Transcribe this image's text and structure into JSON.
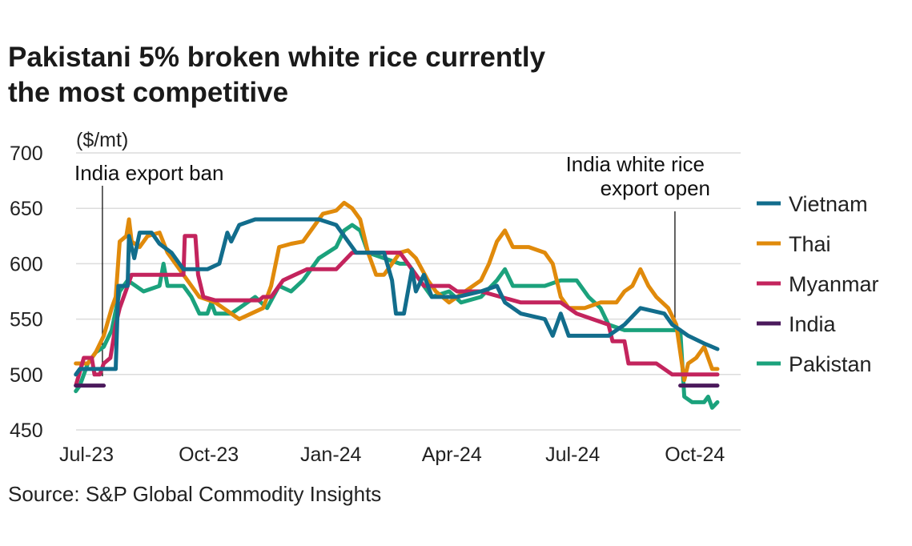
{
  "chart_data": {
    "type": "line",
    "title": "Pakistani 5% broken white rice currently the most competitive",
    "ylabel": "($/mt)",
    "source": "Source: S&P Global Commodity Insights",
    "ylim": [
      450,
      700
    ],
    "yticks": [
      450,
      500,
      550,
      600,
      650,
      700
    ],
    "xticks": [
      {
        "date": "2023-07-01",
        "label": "Jul-23"
      },
      {
        "date": "2023-10-01",
        "label": "Oct-23"
      },
      {
        "date": "2024-01-01",
        "label": "Jan-24"
      },
      {
        "date": "2024-04-01",
        "label": "Apr-24"
      },
      {
        "date": "2024-07-01",
        "label": "Jul-24"
      },
      {
        "date": "2024-10-01",
        "label": "Oct-24"
      }
    ],
    "grid": true,
    "legend_placement": "right",
    "annotations": [
      {
        "date": "2023-07-13",
        "lines": [
          "India export ban"
        ]
      },
      {
        "date": "2024-09-16",
        "lines": [
          "India white rice",
          "export open"
        ]
      }
    ],
    "series": [
      {
        "name": "Vietnam",
        "color": "#126d8c",
        "points": [
          [
            "2023-06-23",
            500
          ],
          [
            "2023-06-26",
            505
          ],
          [
            "2023-07-20",
            505
          ],
          [
            "2023-07-23",
            505
          ],
          [
            "2023-07-25",
            580
          ],
          [
            "2023-08-01",
            580
          ],
          [
            "2023-08-02",
            625
          ],
          [
            "2023-08-06",
            605
          ],
          [
            "2023-08-10",
            628
          ],
          [
            "2023-08-19",
            628
          ],
          [
            "2023-08-25",
            618
          ],
          [
            "2023-09-03",
            610
          ],
          [
            "2023-09-09",
            600
          ],
          [
            "2023-09-12",
            595
          ],
          [
            "2023-09-30",
            595
          ],
          [
            "2023-10-09",
            600
          ],
          [
            "2023-10-15",
            628
          ],
          [
            "2023-10-18",
            620
          ],
          [
            "2023-10-24",
            635
          ],
          [
            "2023-11-05",
            640
          ],
          [
            "2023-12-23",
            640
          ],
          [
            "2024-01-05",
            635
          ],
          [
            "2024-01-14",
            620
          ],
          [
            "2024-01-20",
            610
          ],
          [
            "2024-02-10",
            610
          ],
          [
            "2024-02-16",
            585
          ],
          [
            "2024-02-19",
            555
          ],
          [
            "2024-02-25",
            555
          ],
          [
            "2024-03-02",
            595
          ],
          [
            "2024-03-05",
            575
          ],
          [
            "2024-03-11",
            590
          ],
          [
            "2024-03-17",
            570
          ],
          [
            "2024-04-05",
            570
          ],
          [
            "2024-04-23",
            575
          ],
          [
            "2024-05-05",
            580
          ],
          [
            "2024-05-11",
            565
          ],
          [
            "2024-05-23",
            555
          ],
          [
            "2024-06-10",
            550
          ],
          [
            "2024-06-16",
            535
          ],
          [
            "2024-06-22",
            555
          ],
          [
            "2024-06-28",
            535
          ],
          [
            "2024-07-28",
            535
          ],
          [
            "2024-08-03",
            540
          ],
          [
            "2024-08-09",
            545
          ],
          [
            "2024-08-21",
            560
          ],
          [
            "2024-09-08",
            555
          ],
          [
            "2024-09-14",
            545
          ],
          [
            "2024-09-20",
            540
          ],
          [
            "2024-09-26",
            535
          ],
          [
            "2024-10-08",
            528
          ],
          [
            "2024-10-18",
            523
          ]
        ]
      },
      {
        "name": "Thai",
        "color": "#e08a0b",
        "points": [
          [
            "2023-06-23",
            510
          ],
          [
            "2023-07-02",
            510
          ],
          [
            "2023-07-08",
            520
          ],
          [
            "2023-07-14",
            535
          ],
          [
            "2023-07-20",
            560
          ],
          [
            "2023-07-23",
            570
          ],
          [
            "2023-07-26",
            620
          ],
          [
            "2023-07-31",
            625
          ],
          [
            "2023-08-02",
            640
          ],
          [
            "2023-08-04",
            620
          ],
          [
            "2023-08-10",
            615
          ],
          [
            "2023-08-16",
            625
          ],
          [
            "2023-08-25",
            628
          ],
          [
            "2023-08-31",
            610
          ],
          [
            "2023-09-12",
            590
          ],
          [
            "2023-09-24",
            570
          ],
          [
            "2023-10-06",
            565
          ],
          [
            "2023-10-18",
            555
          ],
          [
            "2023-10-24",
            550
          ],
          [
            "2023-11-02",
            555
          ],
          [
            "2023-11-11",
            560
          ],
          [
            "2023-11-17",
            580
          ],
          [
            "2023-11-23",
            615
          ],
          [
            "2023-12-02",
            618
          ],
          [
            "2023-12-11",
            620
          ],
          [
            "2023-12-20",
            635
          ],
          [
            "2023-12-26",
            645
          ],
          [
            "2024-01-05",
            648
          ],
          [
            "2024-01-11",
            655
          ],
          [
            "2024-01-17",
            650
          ],
          [
            "2024-01-23",
            640
          ],
          [
            "2024-01-29",
            610
          ],
          [
            "2024-02-04",
            590
          ],
          [
            "2024-02-10",
            590
          ],
          [
            "2024-02-16",
            600
          ],
          [
            "2024-02-22",
            610
          ],
          [
            "2024-02-28",
            612
          ],
          [
            "2024-03-05",
            605
          ],
          [
            "2024-03-14",
            585
          ],
          [
            "2024-03-20",
            575
          ],
          [
            "2024-03-30",
            565
          ],
          [
            "2024-04-11",
            575
          ],
          [
            "2024-04-23",
            585
          ],
          [
            "2024-04-29",
            600
          ],
          [
            "2024-05-05",
            620
          ],
          [
            "2024-05-11",
            630
          ],
          [
            "2024-05-17",
            615
          ],
          [
            "2024-05-29",
            615
          ],
          [
            "2024-06-10",
            610
          ],
          [
            "2024-06-16",
            600
          ],
          [
            "2024-06-22",
            570
          ],
          [
            "2024-06-28",
            560
          ],
          [
            "2024-07-10",
            560
          ],
          [
            "2024-07-22",
            565
          ],
          [
            "2024-08-03",
            565
          ],
          [
            "2024-08-09",
            575
          ],
          [
            "2024-08-15",
            580
          ],
          [
            "2024-08-21",
            595
          ],
          [
            "2024-08-27",
            580
          ],
          [
            "2024-09-02",
            570
          ],
          [
            "2024-09-11",
            560
          ],
          [
            "2024-09-17",
            545
          ],
          [
            "2024-09-23",
            495
          ],
          [
            "2024-09-26",
            510
          ],
          [
            "2024-10-02",
            515
          ],
          [
            "2024-10-08",
            525
          ],
          [
            "2024-10-14",
            505
          ],
          [
            "2024-10-18",
            505
          ]
        ]
      },
      {
        "name": "Myanmar",
        "color": "#c3245d",
        "points": [
          [
            "2023-06-23",
            490
          ],
          [
            "2023-06-29",
            515
          ],
          [
            "2023-07-05",
            515
          ],
          [
            "2023-07-07",
            500
          ],
          [
            "2023-07-11",
            500
          ],
          [
            "2023-07-14",
            510
          ],
          [
            "2023-07-19",
            515
          ],
          [
            "2023-07-23",
            545
          ],
          [
            "2023-07-26",
            560
          ],
          [
            "2023-07-29",
            570
          ],
          [
            "2023-08-04",
            590
          ],
          [
            "2023-09-12",
            590
          ],
          [
            "2023-09-13",
            625
          ],
          [
            "2023-09-21",
            625
          ],
          [
            "2023-09-23",
            590
          ],
          [
            "2023-09-27",
            570
          ],
          [
            "2023-10-06",
            567
          ],
          [
            "2023-11-08",
            567
          ],
          [
            "2023-11-11",
            570
          ],
          [
            "2023-11-17",
            570
          ],
          [
            "2023-11-20",
            575
          ],
          [
            "2023-11-26",
            585
          ],
          [
            "2023-12-05",
            590
          ],
          [
            "2023-12-14",
            595
          ],
          [
            "2024-01-05",
            595
          ],
          [
            "2024-01-17",
            610
          ],
          [
            "2024-02-22",
            610
          ],
          [
            "2024-03-11",
            580
          ],
          [
            "2024-03-30",
            580
          ],
          [
            "2024-04-05",
            575
          ],
          [
            "2024-04-23",
            575
          ],
          [
            "2024-05-23",
            565
          ],
          [
            "2024-06-22",
            565
          ],
          [
            "2024-07-04",
            555
          ],
          [
            "2024-07-16",
            550
          ],
          [
            "2024-07-28",
            545
          ],
          [
            "2024-07-31",
            530
          ],
          [
            "2024-08-09",
            530
          ],
          [
            "2024-08-12",
            510
          ],
          [
            "2024-09-02",
            510
          ],
          [
            "2024-09-14",
            500
          ],
          [
            "2024-10-18",
            500
          ]
        ]
      },
      {
        "name": "India",
        "color": "#4b1a5c",
        "points": [
          [
            "2023-06-23",
            490
          ],
          [
            "2023-07-11",
            490
          ],
          [
            "2023-07-14",
            490
          ],
          null,
          [
            "2024-09-20",
            490
          ],
          [
            "2024-10-18",
            490
          ]
        ]
      },
      {
        "name": "Pakistan",
        "color": "#1ba27c",
        "points": [
          [
            "2023-06-23",
            485
          ],
          [
            "2023-06-26",
            490
          ],
          [
            "2023-07-02",
            510
          ],
          [
            "2023-07-08",
            520
          ],
          [
            "2023-07-14",
            525
          ],
          [
            "2023-07-20",
            540
          ],
          [
            "2023-07-26",
            575
          ],
          [
            "2023-08-01",
            585
          ],
          [
            "2023-08-07",
            580
          ],
          [
            "2023-08-13",
            575
          ],
          [
            "2023-08-25",
            580
          ],
          [
            "2023-08-28",
            600
          ],
          [
            "2023-08-31",
            580
          ],
          [
            "2023-09-12",
            580
          ],
          [
            "2023-09-18",
            570
          ],
          [
            "2023-09-24",
            555
          ],
          [
            "2023-09-30",
            555
          ],
          [
            "2023-10-03",
            565
          ],
          [
            "2023-10-06",
            555
          ],
          [
            "2023-10-18",
            555
          ],
          [
            "2023-10-24",
            560
          ],
          [
            "2023-11-05",
            570
          ],
          [
            "2023-11-14",
            560
          ],
          [
            "2023-11-23",
            580
          ],
          [
            "2023-12-02",
            575
          ],
          [
            "2023-12-11",
            585
          ],
          [
            "2023-12-23",
            605
          ],
          [
            "2024-01-05",
            615
          ],
          [
            "2024-01-11",
            630
          ],
          [
            "2024-01-17",
            635
          ],
          [
            "2024-01-23",
            630
          ],
          [
            "2024-01-29",
            610
          ],
          [
            "2024-02-10",
            605
          ],
          [
            "2024-02-22",
            600
          ],
          [
            "2024-02-28",
            600
          ],
          [
            "2024-03-05",
            590
          ],
          [
            "2024-03-17",
            570
          ],
          [
            "2024-03-30",
            575
          ],
          [
            "2024-04-08",
            565
          ],
          [
            "2024-04-23",
            570
          ],
          [
            "2024-05-05",
            585
          ],
          [
            "2024-05-11",
            595
          ],
          [
            "2024-05-17",
            580
          ],
          [
            "2024-06-10",
            580
          ],
          [
            "2024-06-22",
            585
          ],
          [
            "2024-07-04",
            585
          ],
          [
            "2024-07-13",
            570
          ],
          [
            "2024-07-22",
            560
          ],
          [
            "2024-07-28",
            545
          ],
          [
            "2024-08-09",
            540
          ],
          [
            "2024-09-14",
            540
          ],
          [
            "2024-09-20",
            540
          ],
          [
            "2024-09-23",
            480
          ],
          [
            "2024-09-29",
            475
          ],
          [
            "2024-10-08",
            475
          ],
          [
            "2024-10-11",
            480
          ],
          [
            "2024-10-14",
            470
          ],
          [
            "2024-10-18",
            475
          ]
        ]
      }
    ]
  }
}
